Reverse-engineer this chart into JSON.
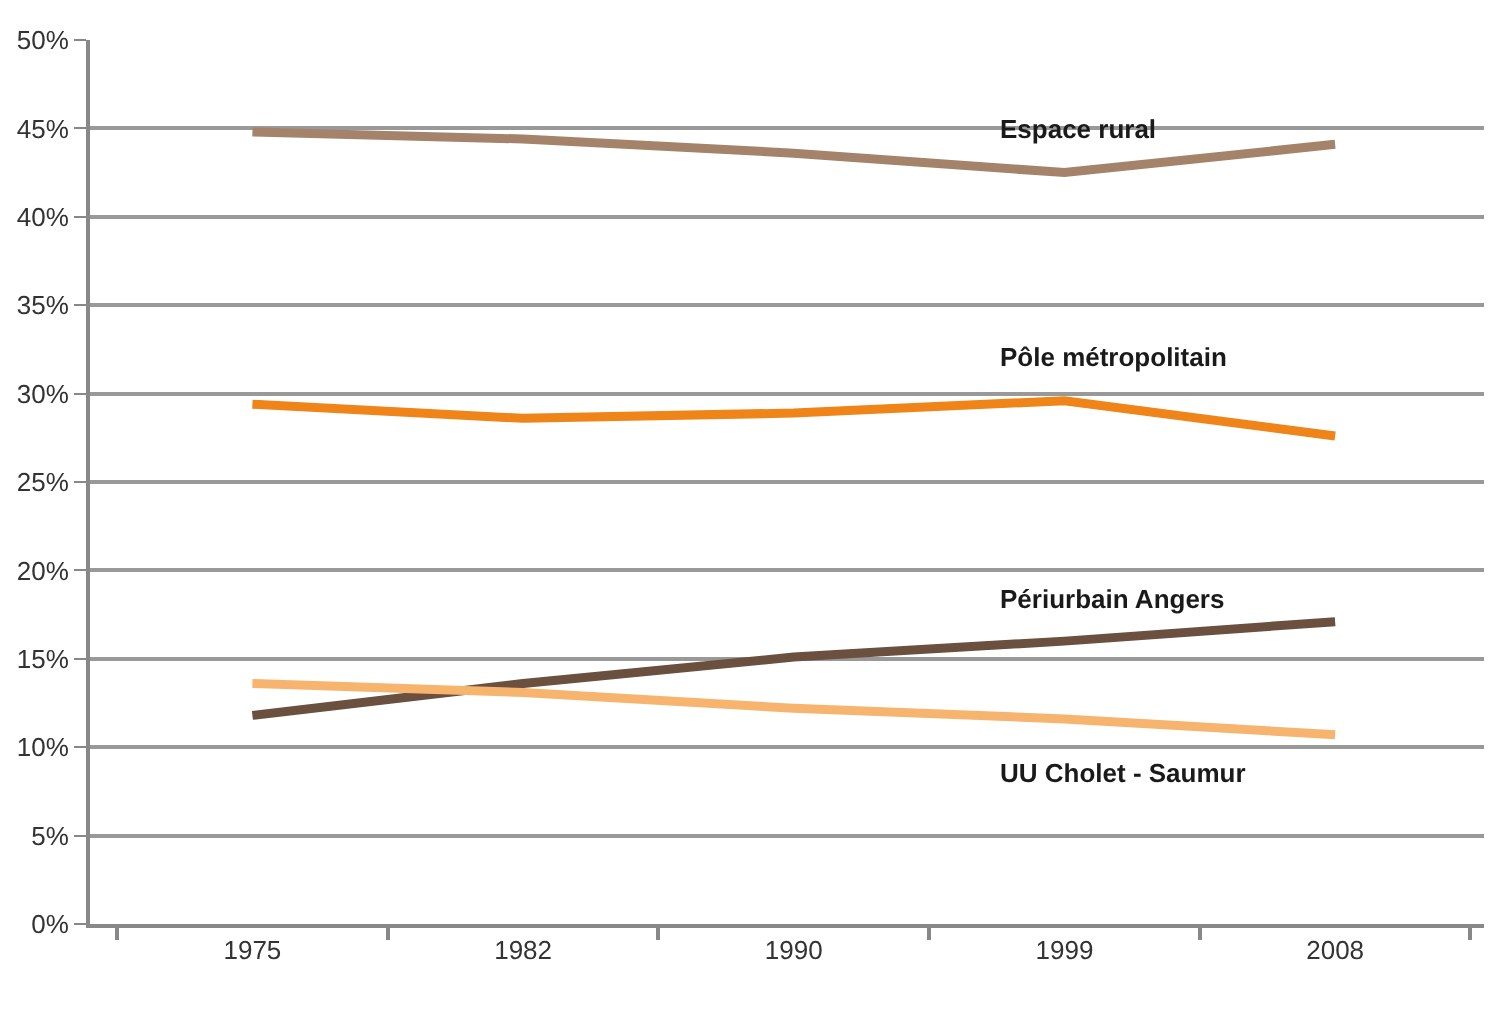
{
  "chart_data": {
    "type": "line",
    "categories": [
      "1975",
      "1982",
      "1990",
      "1999",
      "2008"
    ],
    "series": [
      {
        "name": "Espace rural",
        "color": "#a4836a",
        "values": [
          44.8,
          44.4,
          43.6,
          42.5,
          44.1
        ]
      },
      {
        "name": "Pôle métropolitain",
        "color": "#ef8419",
        "values": [
          29.4,
          28.6,
          28.9,
          29.6,
          27.6
        ]
      },
      {
        "name": "Périurbain Angers",
        "color": "#6b4f3f",
        "values": [
          11.8,
          13.6,
          15.1,
          16.0,
          17.1
        ]
      },
      {
        "name": "UU Cholet - Saumur",
        "color": "#f7b46e",
        "values": [
          13.6,
          13.1,
          12.2,
          11.6,
          10.7
        ]
      }
    ],
    "ylim": [
      0,
      50
    ],
    "yticks": [
      {
        "value": 0,
        "label": "0%"
      },
      {
        "value": 5,
        "label": "5%"
      },
      {
        "value": 10,
        "label": "10%"
      },
      {
        "value": 15,
        "label": "15%"
      },
      {
        "value": 20,
        "label": "20%"
      },
      {
        "value": 25,
        "label": "25%"
      },
      {
        "value": 30,
        "label": "30%"
      },
      {
        "value": 35,
        "label": "35%"
      },
      {
        "value": 40,
        "label": "40%"
      },
      {
        "value": 45,
        "label": "45%"
      },
      {
        "value": 50,
        "label": "50%"
      }
    ],
    "grid": "y",
    "legend": false,
    "marker": "none",
    "line_style": "solid"
  }
}
